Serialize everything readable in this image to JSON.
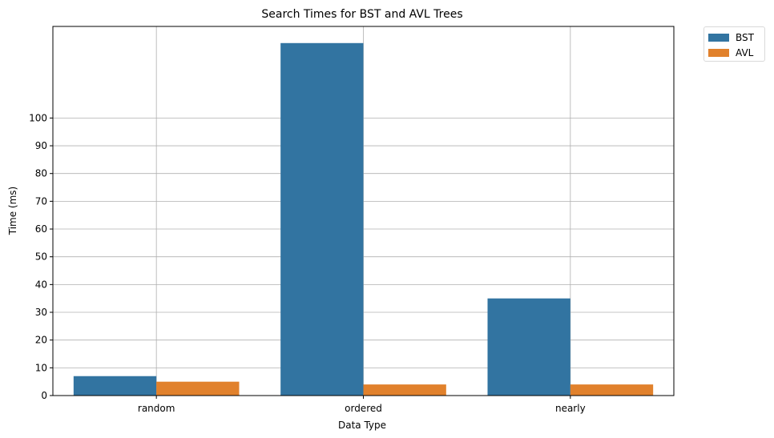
{
  "chart_data": {
    "type": "bar",
    "title": "Search Times for BST and AVL Trees",
    "xlabel": "Data Type",
    "ylabel": "Time (ms)",
    "categories": [
      "random",
      "ordered",
      "nearly"
    ],
    "yticks": [
      0,
      10,
      20,
      30,
      40,
      50,
      60,
      70,
      80,
      90,
      100
    ],
    "ylim": [
      0,
      133
    ],
    "grid": true,
    "legend_position": "outside top-right",
    "series": [
      {
        "name": "BST",
        "color": "#3274a1",
        "values": [
          7,
          127,
          35
        ]
      },
      {
        "name": "AVL",
        "color": "#e1812c",
        "values": [
          5,
          4,
          4
        ]
      }
    ]
  }
}
